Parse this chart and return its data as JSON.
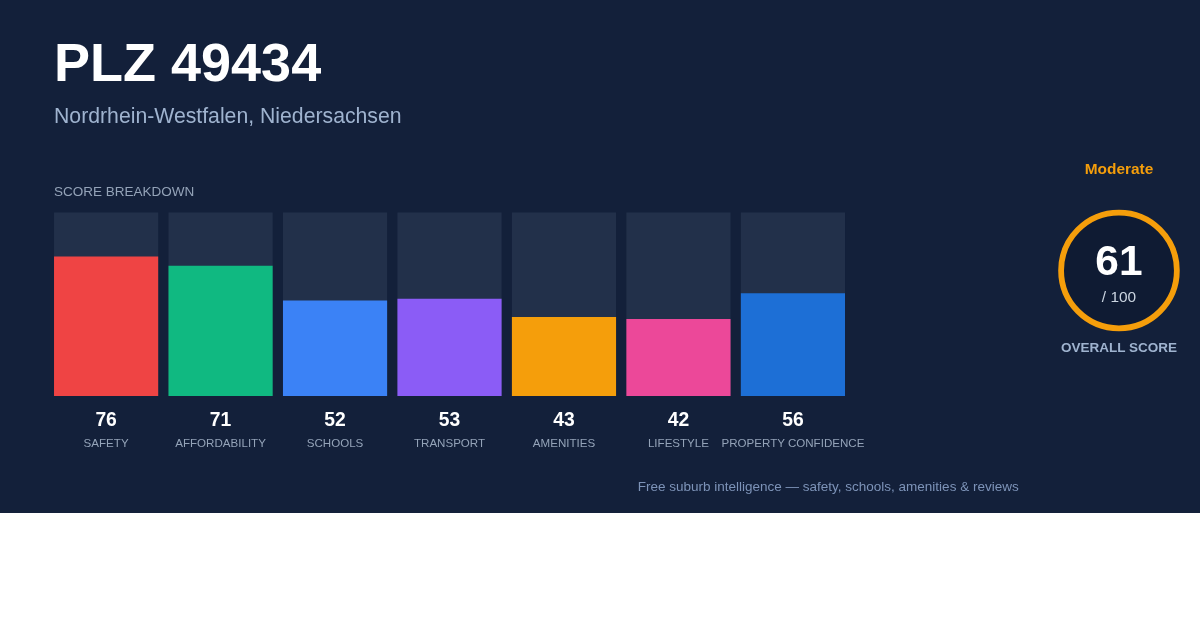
{
  "chart_data": [
    {
      "type": "bar",
      "title": "PLZ 49434",
      "subtitle": "Nordrhein-Westfalen, Niedersachsen",
      "categories": [
        "SAFETY",
        "AFFORDABILITY",
        "SCHOOLS",
        "TRANSPORT",
        "AMENITIES",
        "LIFESTYLE",
        "PROPERTY CONFIDENCE"
      ],
      "values": [
        76,
        71,
        52,
        53,
        43,
        42,
        56
      ],
      "colors": [
        "#ef4444",
        "#10b981",
        "#3b82f6",
        "#8b5cf6",
        "#f59e0b",
        "#ec4899",
        "#1d6fd6"
      ],
      "ylim": [
        0,
        100
      ],
      "data_labels": true,
      "tick_labels": "x",
      "annotations": [
        "SCORE BREAKDOWN",
        "Free suburb intelligence — safety, schools, amenities & reviews"
      ]
    },
    {
      "type": "other",
      "title": "OVERALL SCORE",
      "annotations": [
        "Moderate",
        "61",
        "/ 100"
      ]
    }
  ]
}
